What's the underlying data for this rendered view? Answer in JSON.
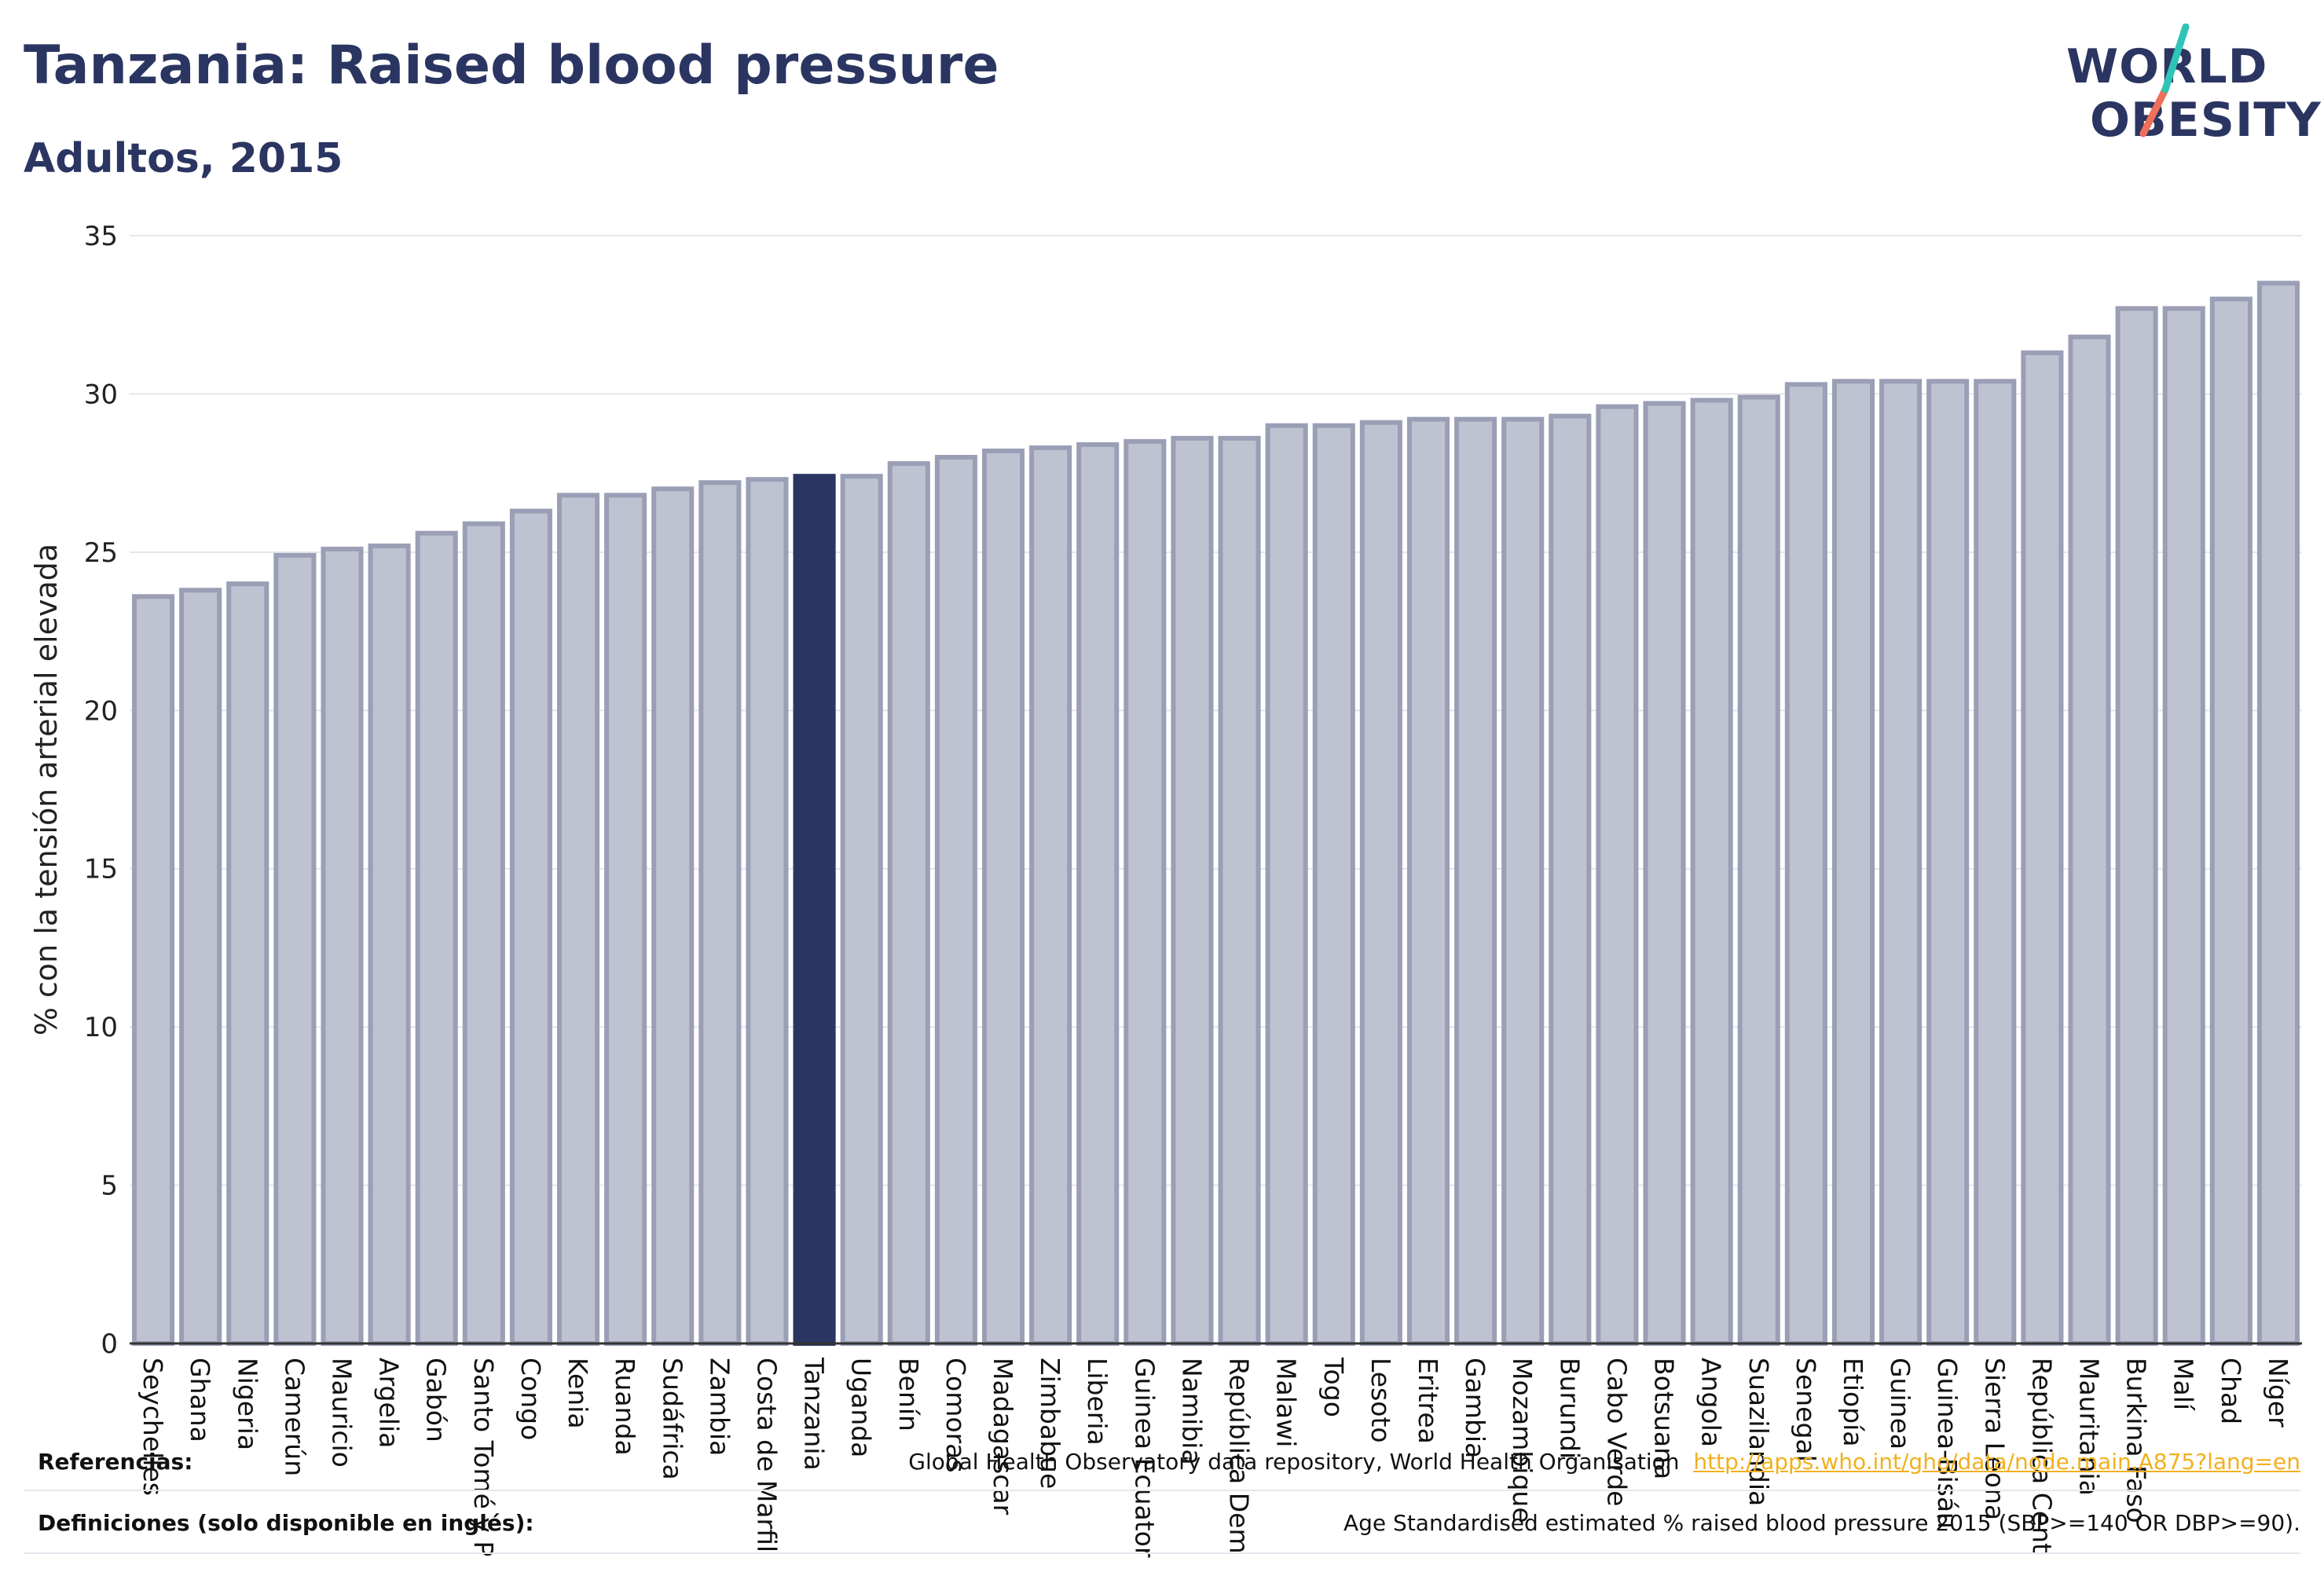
{
  "title": "Tanzania: Raised blood pressure",
  "subtitle": "Adultos, 2015",
  "logo": {
    "line1": "WORLD",
    "line2": "OBESITY"
  },
  "colors": {
    "highlight": "#2b3561",
    "bar_fill": "#bfc2d0",
    "bar_stroke": "#9a9fb6",
    "text": "#2b3561",
    "grid": "#e5e5ea",
    "link": "#f2b01e",
    "logo_teal": "#2ec4b6",
    "logo_coral": "#ef6f5a"
  },
  "chart_data": {
    "type": "bar",
    "ylabel": "% con la tensión arterial elevada",
    "ylim": [
      0,
      35
    ],
    "yticks": [
      0,
      5,
      10,
      15,
      20,
      25,
      30,
      35
    ],
    "highlight": "Tanzania",
    "categories": [
      "Seychelles",
      "Ghana",
      "Nigeria",
      "Camerún",
      "Mauricio",
      "Argelia",
      "Gabón",
      "Santo Tomé y P",
      "Congo",
      "Kenia",
      "Ruanda",
      "Sudáfrica",
      "Zambia",
      "Costa de Marfil",
      "Tanzania",
      "Uganda",
      "Benín",
      "Comoras",
      "Madagascar",
      "Zimbabue",
      "Liberia",
      "Guinea Ecuator",
      "Namibia",
      "República Dem",
      "Malawi",
      "Togo",
      "Lesoto",
      "Eritrea",
      "Gambia",
      "Mozambique",
      "Burundi",
      "Cabo Verde",
      "Botsuana",
      "Angola",
      "Suazilandia",
      "Senegal",
      "Etiopía",
      "Guinea",
      "Guinea-Bisáu",
      "Sierra Leona",
      "República Cent",
      "Mauritania",
      "Burkina Faso",
      "Malí",
      "Chad",
      "Níger"
    ],
    "values": [
      23.6,
      23.8,
      24.0,
      24.9,
      25.1,
      25.2,
      25.6,
      25.9,
      26.3,
      26.8,
      26.8,
      27.0,
      27.2,
      27.3,
      27.4,
      27.4,
      27.8,
      28.0,
      28.2,
      28.3,
      28.4,
      28.5,
      28.6,
      28.6,
      29.0,
      29.0,
      29.1,
      29.2,
      29.2,
      29.2,
      29.3,
      29.6,
      29.7,
      29.8,
      29.9,
      30.3,
      30.4,
      30.4,
      30.4,
      30.4,
      31.3,
      31.8,
      32.7,
      32.7,
      33.0,
      33.5
    ]
  },
  "references": {
    "label": "Referencias:",
    "text": "Global Health Observatory data repository, World Health Organisation",
    "link": "http://apps.who.int/gho/data/node.main.A875?lang=en"
  },
  "definitions": {
    "label": "Definiciones (solo disponible en inglés):",
    "text": "Age Standardised estimated % raised blood pressure 2015 (SBP>=140 OR DBP>=90)."
  }
}
